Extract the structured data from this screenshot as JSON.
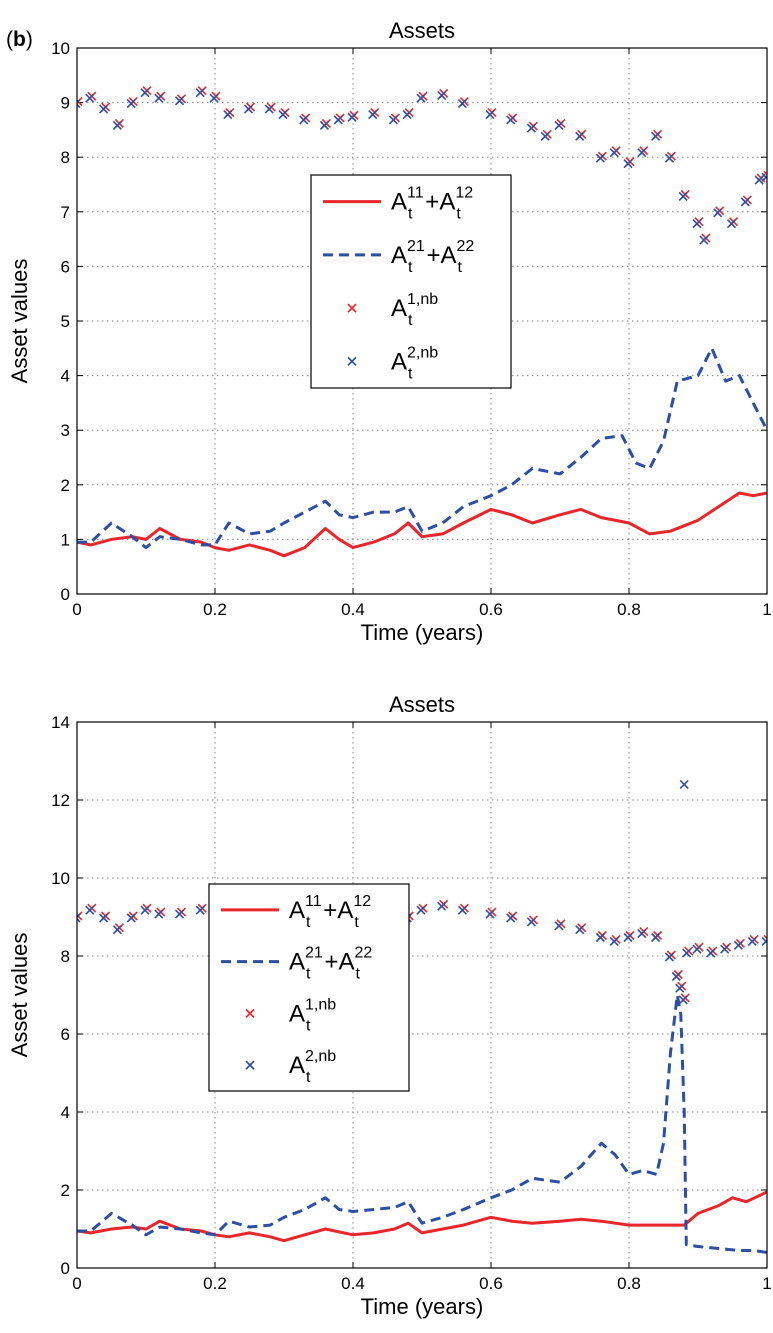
{
  "figure": {
    "panel_label": "b",
    "legend_entries": [
      {
        "base": "A",
        "sub1": "t",
        "sup1": "11",
        "op": "+",
        "base2": "A",
        "sub2": "t",
        "sup2": "12",
        "style": "solid",
        "color": "#e8262b"
      },
      {
        "base": "A",
        "sub1": "t",
        "sup1": "21",
        "op": "+",
        "base2": "A",
        "sub2": "t",
        "sup2": "22",
        "style": "dashed",
        "color": "#2d4fa3"
      },
      {
        "base": "A",
        "sub1": "t",
        "sup1": "1,nb",
        "style": "marker",
        "color": "#e8262b"
      },
      {
        "base": "A",
        "sub1": "t",
        "sup1": "2,nb",
        "style": "marker",
        "color": "#2d4fa3"
      }
    ]
  },
  "chart_data": [
    {
      "type": "line",
      "title": "Assets",
      "xlabel": "Time (years)",
      "ylabel": "Asset values",
      "xlim": [
        0,
        1
      ],
      "ylim": [
        0,
        10
      ],
      "xticks": [
        "0",
        "0.2",
        "0.4",
        "0.6",
        "0.8",
        "1"
      ],
      "yticks": [
        "0",
        "1",
        "2",
        "3",
        "4",
        "5",
        "6",
        "7",
        "8",
        "9",
        "10"
      ],
      "grid": true,
      "legend_position": "center",
      "series": [
        {
          "style": "solid",
          "color": "#e8262b",
          "points": [
            [
              0,
              0.95
            ],
            [
              0.02,
              0.9
            ],
            [
              0.05,
              1.0
            ],
            [
              0.08,
              1.05
            ],
            [
              0.1,
              1.0
            ],
            [
              0.12,
              1.2
            ],
            [
              0.15,
              1.0
            ],
            [
              0.18,
              0.95
            ],
            [
              0.2,
              0.85
            ],
            [
              0.22,
              0.8
            ],
            [
              0.25,
              0.9
            ],
            [
              0.28,
              0.8
            ],
            [
              0.3,
              0.7
            ],
            [
              0.33,
              0.85
            ],
            [
              0.36,
              1.2
            ],
            [
              0.38,
              1.0
            ],
            [
              0.4,
              0.85
            ],
            [
              0.43,
              0.95
            ],
            [
              0.46,
              1.1
            ],
            [
              0.48,
              1.3
            ],
            [
              0.5,
              1.05
            ],
            [
              0.53,
              1.1
            ],
            [
              0.56,
              1.3
            ],
            [
              0.6,
              1.55
            ],
            [
              0.63,
              1.45
            ],
            [
              0.66,
              1.3
            ],
            [
              0.7,
              1.45
            ],
            [
              0.73,
              1.55
            ],
            [
              0.76,
              1.4
            ],
            [
              0.8,
              1.3
            ],
            [
              0.83,
              1.1
            ],
            [
              0.86,
              1.15
            ],
            [
              0.9,
              1.35
            ],
            [
              0.93,
              1.6
            ],
            [
              0.96,
              1.85
            ],
            [
              0.98,
              1.8
            ],
            [
              1,
              1.85
            ]
          ]
        },
        {
          "style": "dashed",
          "color": "#2d4fa3",
          "points": [
            [
              0,
              0.95
            ],
            [
              0.02,
              0.95
            ],
            [
              0.05,
              1.3
            ],
            [
              0.08,
              1.05
            ],
            [
              0.1,
              0.85
            ],
            [
              0.12,
              1.05
            ],
            [
              0.15,
              1.0
            ],
            [
              0.18,
              0.9
            ],
            [
              0.2,
              0.9
            ],
            [
              0.22,
              1.3
            ],
            [
              0.25,
              1.1
            ],
            [
              0.28,
              1.15
            ],
            [
              0.3,
              1.3
            ],
            [
              0.33,
              1.5
            ],
            [
              0.36,
              1.7
            ],
            [
              0.38,
              1.45
            ],
            [
              0.4,
              1.4
            ],
            [
              0.43,
              1.5
            ],
            [
              0.46,
              1.5
            ],
            [
              0.48,
              1.6
            ],
            [
              0.5,
              1.15
            ],
            [
              0.53,
              1.3
            ],
            [
              0.56,
              1.6
            ],
            [
              0.6,
              1.8
            ],
            [
              0.63,
              2.0
            ],
            [
              0.66,
              2.3
            ],
            [
              0.7,
              2.2
            ],
            [
              0.73,
              2.5
            ],
            [
              0.76,
              2.85
            ],
            [
              0.79,
              2.9
            ],
            [
              0.81,
              2.4
            ],
            [
              0.83,
              2.3
            ],
            [
              0.85,
              2.8
            ],
            [
              0.87,
              3.9
            ],
            [
              0.9,
              4.0
            ],
            [
              0.92,
              4.5
            ],
            [
              0.94,
              3.9
            ],
            [
              0.96,
              4.0
            ],
            [
              0.98,
              3.5
            ],
            [
              1,
              3.0
            ]
          ]
        }
      ],
      "marker_points": [
        [
          0,
          9.0
        ],
        [
          0.02,
          9.1
        ],
        [
          0.04,
          8.9
        ],
        [
          0.06,
          8.6
        ],
        [
          0.08,
          9.0
        ],
        [
          0.1,
          9.2
        ],
        [
          0.12,
          9.1
        ],
        [
          0.15,
          9.05
        ],
        [
          0.18,
          9.2
        ],
        [
          0.2,
          9.1
        ],
        [
          0.22,
          8.8
        ],
        [
          0.25,
          8.9
        ],
        [
          0.28,
          8.9
        ],
        [
          0.3,
          8.8
        ],
        [
          0.33,
          8.7
        ],
        [
          0.36,
          8.6
        ],
        [
          0.38,
          8.7
        ],
        [
          0.4,
          8.75
        ],
        [
          0.43,
          8.8
        ],
        [
          0.46,
          8.7
        ],
        [
          0.48,
          8.8
        ],
        [
          0.5,
          9.1
        ],
        [
          0.53,
          9.15
        ],
        [
          0.56,
          9.0
        ],
        [
          0.6,
          8.8
        ],
        [
          0.63,
          8.7
        ],
        [
          0.66,
          8.55
        ],
        [
          0.68,
          8.4
        ],
        [
          0.7,
          8.6
        ],
        [
          0.73,
          8.4
        ],
        [
          0.76,
          8.0
        ],
        [
          0.78,
          8.1
        ],
        [
          0.8,
          7.9
        ],
        [
          0.82,
          8.1
        ],
        [
          0.84,
          8.4
        ],
        [
          0.86,
          8.0
        ],
        [
          0.88,
          7.3
        ],
        [
          0.9,
          6.8
        ],
        [
          0.91,
          6.5
        ],
        [
          0.93,
          7.0
        ],
        [
          0.95,
          6.8
        ],
        [
          0.97,
          7.2
        ],
        [
          0.99,
          7.6
        ],
        [
          1,
          7.65
        ]
      ]
    },
    {
      "type": "line",
      "title": "Assets",
      "xlabel": "Time (years)",
      "ylabel": "Asset values",
      "xlim": [
        0,
        1
      ],
      "ylim": [
        0,
        14
      ],
      "xticks": [
        "0",
        "0.2",
        "0.4",
        "0.6",
        "0.8",
        "1"
      ],
      "yticks": [
        "0",
        "2",
        "4",
        "6",
        "8",
        "10",
        "12",
        "14"
      ],
      "grid": true,
      "legend_position": "center-left",
      "series": [
        {
          "style": "solid",
          "color": "#e8262b",
          "points": [
            [
              0,
              0.95
            ],
            [
              0.02,
              0.9
            ],
            [
              0.05,
              1.0
            ],
            [
              0.08,
              1.05
            ],
            [
              0.1,
              1.0
            ],
            [
              0.12,
              1.2
            ],
            [
              0.15,
              1.0
            ],
            [
              0.18,
              0.95
            ],
            [
              0.2,
              0.85
            ],
            [
              0.22,
              0.8
            ],
            [
              0.25,
              0.9
            ],
            [
              0.28,
              0.8
            ],
            [
              0.3,
              0.7
            ],
            [
              0.33,
              0.85
            ],
            [
              0.36,
              1.0
            ],
            [
              0.4,
              0.85
            ],
            [
              0.43,
              0.9
            ],
            [
              0.46,
              1.0
            ],
            [
              0.48,
              1.15
            ],
            [
              0.5,
              0.9
            ],
            [
              0.53,
              1.0
            ],
            [
              0.56,
              1.1
            ],
            [
              0.6,
              1.3
            ],
            [
              0.63,
              1.2
            ],
            [
              0.66,
              1.15
            ],
            [
              0.7,
              1.2
            ],
            [
              0.73,
              1.25
            ],
            [
              0.76,
              1.2
            ],
            [
              0.8,
              1.1
            ],
            [
              0.83,
              1.1
            ],
            [
              0.86,
              1.1
            ],
            [
              0.88,
              1.1
            ],
            [
              0.9,
              1.4
            ],
            [
              0.93,
              1.6
            ],
            [
              0.95,
              1.8
            ],
            [
              0.97,
              1.7
            ],
            [
              1,
              1.95
            ]
          ]
        },
        {
          "style": "dashed",
          "color": "#2d4fa3",
          "points": [
            [
              0,
              0.95
            ],
            [
              0.02,
              0.95
            ],
            [
              0.05,
              1.4
            ],
            [
              0.08,
              1.1
            ],
            [
              0.1,
              0.85
            ],
            [
              0.12,
              1.05
            ],
            [
              0.15,
              1.0
            ],
            [
              0.18,
              0.9
            ],
            [
              0.2,
              0.85
            ],
            [
              0.22,
              1.2
            ],
            [
              0.25,
              1.05
            ],
            [
              0.28,
              1.1
            ],
            [
              0.3,
              1.3
            ],
            [
              0.33,
              1.5
            ],
            [
              0.36,
              1.8
            ],
            [
              0.38,
              1.5
            ],
            [
              0.4,
              1.45
            ],
            [
              0.43,
              1.5
            ],
            [
              0.46,
              1.55
            ],
            [
              0.48,
              1.7
            ],
            [
              0.5,
              1.15
            ],
            [
              0.53,
              1.3
            ],
            [
              0.56,
              1.5
            ],
            [
              0.6,
              1.8
            ],
            [
              0.63,
              2.0
            ],
            [
              0.66,
              2.3
            ],
            [
              0.7,
              2.2
            ],
            [
              0.73,
              2.6
            ],
            [
              0.76,
              3.2
            ],
            [
              0.78,
              2.9
            ],
            [
              0.8,
              2.4
            ],
            [
              0.82,
              2.5
            ],
            [
              0.84,
              2.4
            ],
            [
              0.85,
              3.2
            ],
            [
              0.86,
              5.5
            ],
            [
              0.87,
              7.0
            ],
            [
              0.875,
              6.5
            ],
            [
              0.88,
              4.0
            ],
            [
              0.883,
              0.6
            ],
            [
              0.9,
              0.55
            ],
            [
              0.93,
              0.5
            ],
            [
              0.96,
              0.45
            ],
            [
              0.98,
              0.45
            ],
            [
              1,
              0.4
            ]
          ]
        }
      ],
      "marker_points": [
        [
          0,
          9.0
        ],
        [
          0.02,
          9.2
        ],
        [
          0.04,
          9.0
        ],
        [
          0.06,
          8.7
        ],
        [
          0.08,
          9.0
        ],
        [
          0.1,
          9.2
        ],
        [
          0.12,
          9.1
        ],
        [
          0.15,
          9.1
        ],
        [
          0.18,
          9.2
        ],
        [
          0.2,
          9.0
        ],
        [
          0.22,
          8.8
        ],
        [
          0.25,
          8.9
        ],
        [
          0.28,
          8.9
        ],
        [
          0.3,
          8.8
        ],
        [
          0.33,
          8.8
        ],
        [
          0.36,
          8.7
        ],
        [
          0.38,
          8.8
        ],
        [
          0.4,
          8.75
        ],
        [
          0.43,
          8.8
        ],
        [
          0.46,
          8.8
        ],
        [
          0.48,
          9.0
        ],
        [
          0.5,
          9.2
        ],
        [
          0.53,
          9.3
        ],
        [
          0.56,
          9.2
        ],
        [
          0.6,
          9.1
        ],
        [
          0.63,
          9.0
        ],
        [
          0.66,
          8.9
        ],
        [
          0.7,
          8.8
        ],
        [
          0.73,
          8.7
        ],
        [
          0.76,
          8.5
        ],
        [
          0.78,
          8.4
        ],
        [
          0.8,
          8.5
        ],
        [
          0.82,
          8.6
        ],
        [
          0.84,
          8.5
        ],
        [
          0.86,
          8.0
        ],
        [
          0.87,
          7.5
        ],
        [
          0.875,
          7.2
        ],
        [
          0.88,
          6.9
        ],
        [
          0.885,
          8.1
        ],
        [
          0.9,
          8.2
        ],
        [
          0.92,
          8.1
        ],
        [
          0.94,
          8.2
        ],
        [
          0.96,
          8.3
        ],
        [
          0.98,
          8.4
        ],
        [
          1,
          8.4
        ]
      ],
      "outlier_point": [
        0.88,
        12.4
      ]
    }
  ]
}
